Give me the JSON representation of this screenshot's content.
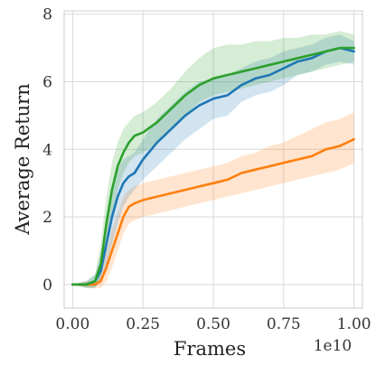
{
  "chart_data": {
    "type": "line",
    "xlabel": "Frames",
    "ylabel": "Average Return",
    "x_offset_label": "1e10",
    "xlim": [
      -0.03,
      1.03
    ],
    "ylim": [
      -0.7,
      8.1
    ],
    "xticks": [
      0.0,
      0.25,
      0.5,
      0.75,
      1.0
    ],
    "xtick_labels": [
      "0.00",
      "0.25",
      "0.50",
      "0.75",
      "1.00"
    ],
    "yticks": [
      0,
      2,
      4,
      6,
      8
    ],
    "ytick_labels": [
      "0",
      "2",
      "4",
      "6",
      "8"
    ],
    "grid": true,
    "legend": "none",
    "x": [
      0.0,
      0.05,
      0.08,
      0.1,
      0.12,
      0.14,
      0.16,
      0.18,
      0.2,
      0.22,
      0.25,
      0.3,
      0.35,
      0.4,
      0.45,
      0.5,
      0.55,
      0.6,
      0.65,
      0.7,
      0.75,
      0.8,
      0.85,
      0.9,
      0.95,
      1.0
    ],
    "series": [
      {
        "color": "#1f77b4",
        "values": [
          0.0,
          0.0,
          0.1,
          0.4,
          1.2,
          2.0,
          2.6,
          3.0,
          3.2,
          3.3,
          3.7,
          4.2,
          4.6,
          5.0,
          5.3,
          5.5,
          5.6,
          5.9,
          6.1,
          6.2,
          6.4,
          6.6,
          6.7,
          6.9,
          7.0,
          6.9
        ],
        "lower": [
          0.0,
          -0.1,
          -0.1,
          0.1,
          0.5,
          1.2,
          1.8,
          2.3,
          2.6,
          2.8,
          3.1,
          3.5,
          3.9,
          4.3,
          4.6,
          4.9,
          5.0,
          5.4,
          5.6,
          5.7,
          5.9,
          6.2,
          6.3,
          6.5,
          6.6,
          6.5
        ],
        "upper": [
          0.0,
          0.1,
          0.3,
          0.9,
          1.9,
          2.8,
          3.4,
          3.7,
          3.8,
          3.9,
          4.3,
          4.9,
          5.3,
          5.7,
          6.0,
          6.1,
          6.2,
          6.4,
          6.6,
          6.7,
          6.9,
          7.0,
          7.1,
          7.3,
          7.4,
          7.2
        ]
      },
      {
        "color": "#ff7f0e",
        "values": [
          0.0,
          0.0,
          0.0,
          0.1,
          0.5,
          1.0,
          1.5,
          2.0,
          2.3,
          2.4,
          2.5,
          2.6,
          2.7,
          2.8,
          2.9,
          3.0,
          3.1,
          3.3,
          3.4,
          3.5,
          3.6,
          3.7,
          3.8,
          4.0,
          4.1,
          4.3
        ],
        "lower": [
          0.0,
          -0.1,
          -0.1,
          -0.1,
          0.1,
          0.5,
          1.0,
          1.5,
          1.8,
          1.9,
          2.0,
          2.1,
          2.2,
          2.3,
          2.4,
          2.5,
          2.6,
          2.7,
          2.8,
          2.9,
          3.0,
          3.1,
          3.2,
          3.3,
          3.4,
          3.6
        ],
        "upper": [
          0.0,
          0.1,
          0.1,
          0.4,
          1.0,
          1.6,
          2.1,
          2.6,
          2.8,
          2.9,
          3.0,
          3.1,
          3.2,
          3.3,
          3.4,
          3.5,
          3.6,
          3.8,
          3.9,
          4.1,
          4.2,
          4.4,
          4.6,
          4.8,
          4.9,
          5.1
        ]
      },
      {
        "color": "#2ca02c",
        "values": [
          0.0,
          0.0,
          0.1,
          0.6,
          1.8,
          2.8,
          3.5,
          3.9,
          4.2,
          4.4,
          4.5,
          4.8,
          5.2,
          5.6,
          5.9,
          6.1,
          6.2,
          6.3,
          6.4,
          6.5,
          6.6,
          6.7,
          6.8,
          6.9,
          7.0,
          7.0
        ],
        "lower": [
          0.0,
          -0.1,
          -0.1,
          0.2,
          1.0,
          2.0,
          2.8,
          3.3,
          3.6,
          3.8,
          3.9,
          4.2,
          4.6,
          5.0,
          5.4,
          5.6,
          5.7,
          5.8,
          5.9,
          6.0,
          6.1,
          6.2,
          6.3,
          6.4,
          6.5,
          6.6
        ],
        "upper": [
          0.0,
          0.1,
          0.3,
          1.2,
          2.6,
          3.6,
          4.2,
          4.6,
          4.8,
          5.0,
          5.1,
          5.4,
          5.8,
          6.3,
          6.7,
          7.0,
          7.1,
          7.1,
          7.2,
          7.2,
          7.3,
          7.3,
          7.4,
          7.4,
          7.5,
          7.4
        ]
      }
    ]
  }
}
